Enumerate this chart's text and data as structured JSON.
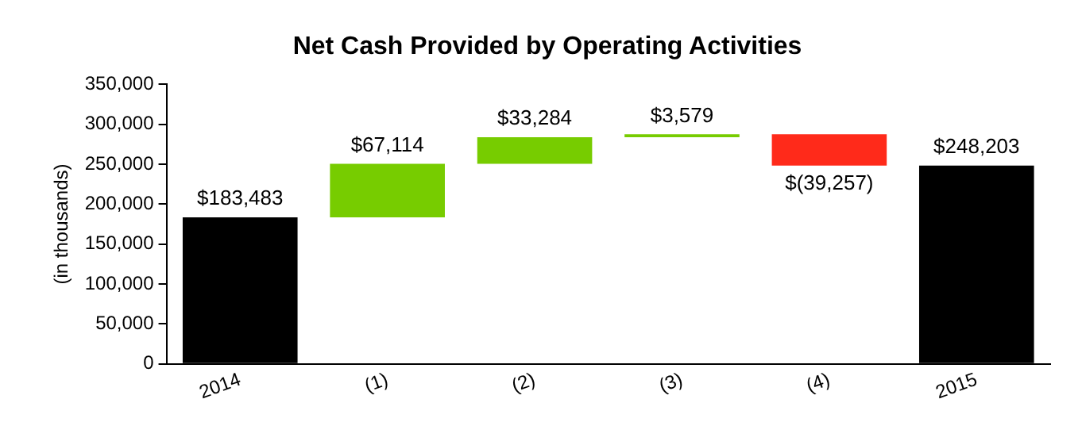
{
  "chart_data": {
    "type": "bar",
    "title": "Net Cash Provided by Operating Activities",
    "ylabel": "(in thousands)",
    "categories": [
      "2014",
      "(1)",
      "(2)",
      "(3)",
      "(4)",
      "2015"
    ],
    "values": [
      183483,
      67114,
      33284,
      3579,
      -39257,
      248203
    ],
    "base": [
      0,
      183483,
      250597,
      283881,
      287460,
      0
    ],
    "colors": [
      "#000000",
      "#77cc00",
      "#77cc00",
      "#77cc00",
      "#ff2a1a",
      "#000000"
    ],
    "value_labels": [
      "$183,483",
      "$67,114",
      "$33,284",
      "$3,579",
      "$(39,257)",
      "$248,203"
    ],
    "ylim": [
      0,
      350000
    ],
    "yticks": [
      0,
      {
        "value": 50000,
        "label": "50,000"
      },
      {
        "value": 100000,
        "label": "100,000"
      },
      {
        "value": 150000,
        "label": "150,000"
      },
      {
        "value": 200000,
        "label": "200,000"
      },
      {
        "value": 250000,
        "label": "250,000"
      },
      {
        "value": 300000,
        "label": "300,000"
      },
      {
        "value": 350000,
        "label": "350,000"
      }
    ],
    "grid": false,
    "legend": false
  }
}
